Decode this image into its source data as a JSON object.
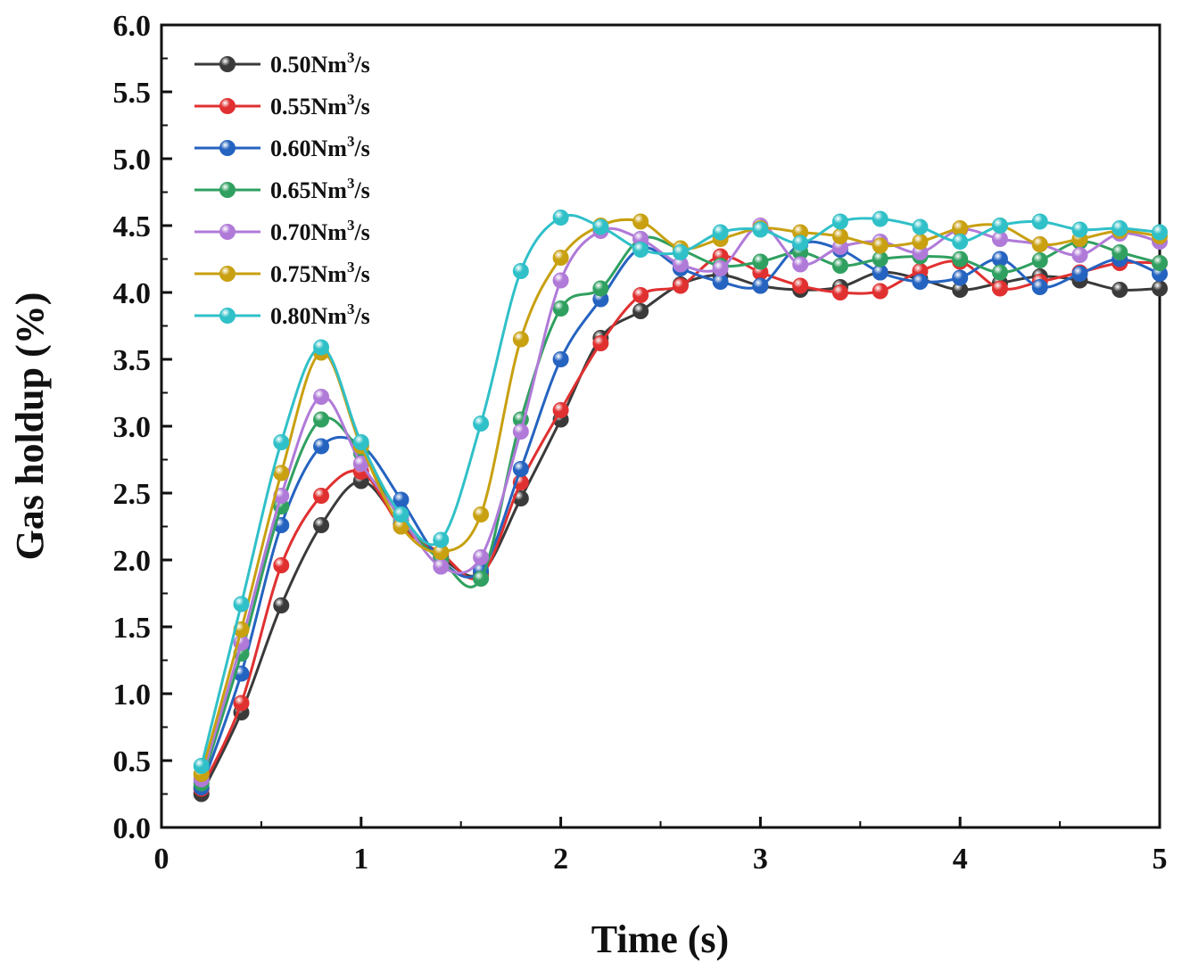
{
  "chart_data": {
    "type": "line",
    "title": "",
    "xlabel": "Time (s)",
    "ylabel": "Gas holdup (%)",
    "xlim": [
      0,
      5
    ],
    "ylim": [
      0,
      6
    ],
    "xticks": [
      "0",
      "1",
      "2",
      "3",
      "4",
      "5"
    ],
    "yticks": [
      "0.0",
      "0.5",
      "1.0",
      "1.5",
      "2.0",
      "2.5",
      "3.0",
      "3.5",
      "4.0",
      "4.5",
      "5.0",
      "5.5",
      "6.0"
    ],
    "grid": false,
    "legend_position": "top-left",
    "x": [
      0.2,
      0.4,
      0.6,
      0.8,
      1.0,
      1.2,
      1.4,
      1.6,
      1.8,
      2.0,
      2.2,
      2.4,
      2.6,
      2.8,
      3.0,
      3.2,
      3.4,
      3.6,
      3.8,
      4.0,
      4.2,
      4.4,
      4.6,
      4.8,
      5.0
    ],
    "series": [
      {
        "name": "0.50Nm",
        "unit_sup": "3",
        "unit_rest": "/s",
        "color": "#3a3a3a",
        "values": [
          0.25,
          0.86,
          1.66,
          2.26,
          2.59,
          2.27,
          2.02,
          1.9,
          2.46,
          3.05,
          3.66,
          3.86,
          4.06,
          4.13,
          4.05,
          4.02,
          4.04,
          4.15,
          4.1,
          4.02,
          4.07,
          4.12,
          4.09,
          4.02,
          4.03
        ]
      },
      {
        "name": "0.55Nm",
        "unit_sup": "3",
        "unit_rest": "/s",
        "color": "#e03030",
        "values": [
          0.29,
          0.93,
          1.96,
          2.48,
          2.66,
          2.25,
          2.05,
          1.88,
          2.58,
          3.12,
          3.62,
          3.98,
          4.05,
          4.27,
          4.15,
          4.05,
          4.0,
          4.01,
          4.16,
          4.23,
          4.03,
          4.08,
          4.15,
          4.22,
          4.22
        ]
      },
      {
        "name": "0.60Nm",
        "unit_sup": "3",
        "unit_rest": "/s",
        "color": "#2563c0",
        "values": [
          0.3,
          1.15,
          2.26,
          2.85,
          2.86,
          2.45,
          2.0,
          1.92,
          2.68,
          3.5,
          3.95,
          4.33,
          4.18,
          4.08,
          4.05,
          4.36,
          4.32,
          4.15,
          4.08,
          4.11,
          4.25,
          4.04,
          4.14,
          4.25,
          4.14
        ]
      },
      {
        "name": "0.65Nm",
        "unit_sup": "3",
        "unit_rest": "/s",
        "color": "#30a060",
        "values": [
          0.33,
          1.3,
          2.4,
          3.05,
          2.8,
          2.3,
          2.0,
          1.86,
          3.05,
          3.88,
          4.03,
          4.4,
          4.32,
          4.2,
          4.23,
          4.3,
          4.2,
          4.25,
          4.27,
          4.25,
          4.15,
          4.24,
          4.38,
          4.3,
          4.22
        ]
      },
      {
        "name": "0.70Nm",
        "unit_sup": "3",
        "unit_rest": "/s",
        "color": "#b07ad8",
        "values": [
          0.36,
          1.38,
          2.48,
          3.22,
          2.72,
          2.32,
          1.95,
          2.02,
          2.96,
          4.09,
          4.46,
          4.4,
          4.21,
          4.18,
          4.5,
          4.21,
          4.34,
          4.38,
          4.3,
          4.47,
          4.4,
          4.36,
          4.28,
          4.44,
          4.38
        ]
      },
      {
        "name": "0.75Nm",
        "unit_sup": "3",
        "unit_rest": "/s",
        "color": "#c8a010",
        "values": [
          0.4,
          1.48,
          2.65,
          3.55,
          2.85,
          2.25,
          2.06,
          2.34,
          3.65,
          4.26,
          4.5,
          4.53,
          4.33,
          4.4,
          4.48,
          4.45,
          4.42,
          4.35,
          4.38,
          4.48,
          4.5,
          4.36,
          4.4,
          4.46,
          4.42
        ]
      },
      {
        "name": "0.80Nm",
        "unit_sup": "3",
        "unit_rest": "/s",
        "color": "#30c0c8",
        "values": [
          0.46,
          1.67,
          2.88,
          3.59,
          2.88,
          2.34,
          2.15,
          3.02,
          4.16,
          4.56,
          4.49,
          4.32,
          4.3,
          4.45,
          4.47,
          4.37,
          4.53,
          4.55,
          4.49,
          4.38,
          4.5,
          4.53,
          4.47,
          4.48,
          4.45
        ]
      }
    ]
  }
}
